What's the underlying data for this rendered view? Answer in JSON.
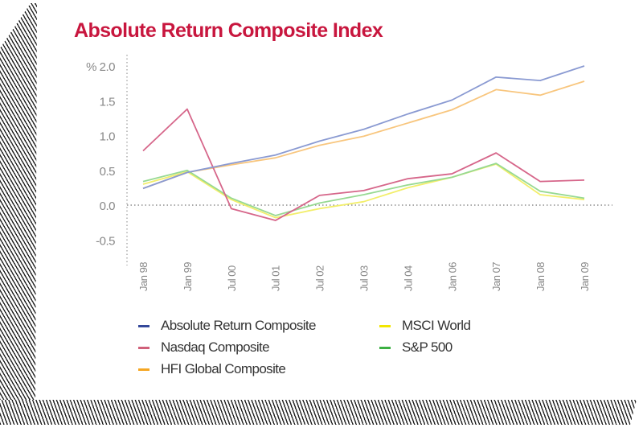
{
  "chart_data": {
    "type": "line",
    "title": "Absolute Return Composite Index",
    "ylabel": "%",
    "ylim": [
      -0.5,
      2.0
    ],
    "yticks": [
      "2.0",
      "1.5",
      "1.0",
      "0.5",
      "0.0",
      "-0.5"
    ],
    "yunit_prefix": "%",
    "categories": [
      "Jan 98",
      "Jan 99",
      "Jul 00",
      "Jul 01",
      "Jul 02",
      "Jul 03",
      "Jul 04",
      "Jan 06",
      "Jan 07",
      "Jan 08",
      "Jan 09"
    ],
    "grid": false,
    "legend_position": "bottom",
    "series": [
      {
        "name": "Absolute Return Composite",
        "color": "#8a9ad2",
        "legend_color": "#34489a",
        "values": [
          0.24,
          0.47,
          0.6,
          0.72,
          0.92,
          1.09,
          1.31,
          1.51,
          1.84,
          1.79,
          2.0
        ]
      },
      {
        "name": "Nasdaq Composite",
        "color": "#d6668a",
        "legend_color": "#d0607a",
        "values": [
          0.78,
          1.38,
          -0.05,
          -0.22,
          0.14,
          0.21,
          0.38,
          0.45,
          0.75,
          0.34,
          0.36
        ]
      },
      {
        "name": "HFI Global Composite",
        "color": "#f8c67e",
        "legend_color": "#f5a623",
        "values": [
          0.24,
          0.47,
          0.58,
          0.68,
          0.86,
          0.99,
          1.18,
          1.37,
          1.66,
          1.58,
          1.78
        ]
      },
      {
        "name": "MSCI World",
        "color": "#f2ee6a",
        "legend_color": "#f2e600",
        "values": [
          0.3,
          0.48,
          0.08,
          -0.18,
          -0.05,
          0.05,
          0.25,
          0.4,
          0.59,
          0.15,
          0.08
        ]
      },
      {
        "name": "S&P 500",
        "color": "#97d992",
        "legend_color": "#3cb043",
        "values": [
          0.34,
          0.5,
          0.1,
          -0.15,
          0.03,
          0.15,
          0.29,
          0.4,
          0.6,
          0.2,
          0.1
        ]
      }
    ]
  }
}
